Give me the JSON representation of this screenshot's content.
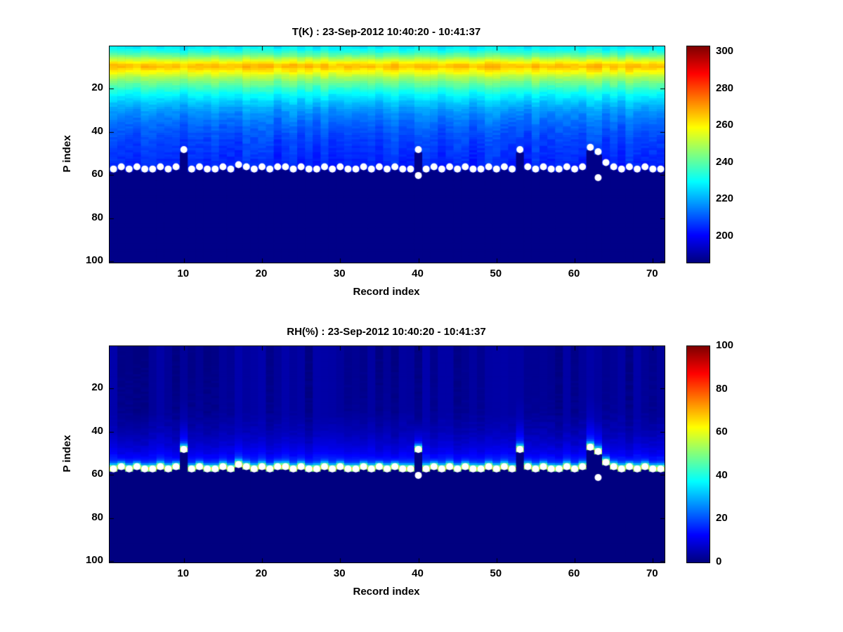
{
  "figure": {
    "background": "#ffffff"
  },
  "chart_data": [
    {
      "type": "heatmap",
      "title": "T(K) : 23-Sep-2012 10:40:20 - 10:41:37",
      "xlabel": "Record index",
      "ylabel": "P index",
      "x_range": [
        1,
        71
      ],
      "p_range": [
        1,
        100
      ],
      "x_ticks": [
        10,
        20,
        30,
        40,
        50,
        60,
        70
      ],
      "y_ticks": [
        20,
        40,
        60,
        80,
        100
      ],
      "y_axis_direction": "reversed",
      "colormap": "jet",
      "grid": false,
      "colorbar": {
        "min": 186,
        "max": 303,
        "ticks": [
          200,
          220,
          240,
          260,
          280,
          300
        ]
      },
      "profile": {
        "p": [
          1,
          3,
          5,
          7,
          8,
          9,
          10,
          11,
          13,
          15,
          18,
          22,
          26,
          31,
          37,
          44,
          50,
          57
        ],
        "value": [
          228,
          234,
          243,
          254,
          260,
          265,
          266,
          263,
          256,
          249,
          241,
          231,
          224,
          217,
          212,
          208,
          206,
          204
        ]
      },
      "band_profile": null,
      "below_surface_value": 187,
      "column_noise_amp": 2.5,
      "cell_noise_amp": 1.5,
      "surface_p": [
        58,
        57,
        58,
        57,
        58,
        58,
        57,
        58,
        57,
        49,
        58,
        57,
        58,
        58,
        57,
        58,
        56,
        57,
        58,
        57,
        58,
        57,
        57,
        58,
        57,
        58,
        58,
        57,
        58,
        57,
        58,
        58,
        57,
        58,
        57,
        58,
        57,
        58,
        58,
        49,
        58,
        57,
        58,
        57,
        58,
        57,
        58,
        58,
        57,
        58,
        57,
        58,
        49,
        57,
        58,
        57,
        58,
        58,
        57,
        58,
        57,
        48,
        50,
        55,
        57,
        58,
        57,
        58,
        57,
        58,
        58
      ],
      "extra_dots": [
        {
          "x": 40,
          "p": 61
        },
        {
          "x": 63,
          "p": 62
        }
      ],
      "marker": {
        "shape": "circle",
        "color": "#ffffff",
        "radius": 5
      }
    },
    {
      "type": "heatmap",
      "title": "RH(%) : 23-Sep-2012 10:40:20 - 10:41:37",
      "xlabel": "Record index",
      "ylabel": "P index",
      "x_range": [
        1,
        71
      ],
      "p_range": [
        1,
        100
      ],
      "x_ticks": [
        10,
        20,
        30,
        40,
        50,
        60,
        70
      ],
      "y_ticks": [
        20,
        40,
        60,
        80,
        100
      ],
      "y_axis_direction": "reversed",
      "colormap": "jet",
      "grid": false,
      "colorbar": {
        "min": 0,
        "max": 100,
        "ticks": [
          0,
          20,
          40,
          60,
          80,
          100
        ]
      },
      "profile": {
        "p": [
          1,
          30,
          40,
          46,
          50,
          53,
          55
        ],
        "value": [
          1,
          2,
          5,
          8,
          11,
          15,
          20
        ]
      },
      "band_profile": {
        "d": [
          0,
          1,
          2,
          3,
          4,
          5,
          7,
          10,
          15,
          25
        ],
        "value": [
          52,
          68,
          46,
          27,
          18,
          14,
          11,
          8,
          4,
          2
        ]
      },
      "below_surface_value": 0,
      "column_noise_amp": 1.2,
      "cell_noise_amp": 0.8,
      "surface_p": [
        58,
        57,
        58,
        57,
        58,
        58,
        57,
        58,
        57,
        49,
        58,
        57,
        58,
        58,
        57,
        58,
        56,
        57,
        58,
        57,
        58,
        57,
        57,
        58,
        57,
        58,
        58,
        57,
        58,
        57,
        58,
        58,
        57,
        58,
        57,
        58,
        57,
        58,
        58,
        49,
        58,
        57,
        58,
        57,
        58,
        57,
        58,
        58,
        57,
        58,
        57,
        58,
        49,
        57,
        58,
        57,
        58,
        58,
        57,
        58,
        57,
        48,
        50,
        55,
        57,
        58,
        57,
        58,
        57,
        58,
        58
      ],
      "extra_dots": [
        {
          "x": 40,
          "p": 61
        },
        {
          "x": 63,
          "p": 62
        }
      ],
      "marker": {
        "shape": "circle",
        "color": "#ffffff",
        "radius": 5
      }
    }
  ]
}
